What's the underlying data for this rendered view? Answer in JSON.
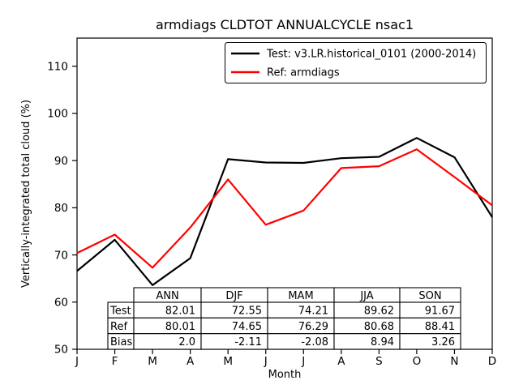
{
  "chart_data": {
    "type": "line",
    "title": "armdiags CLDTOT ANNUALCYCLE nsac1",
    "xlabel": "Month",
    "ylabel": "Vertically-integrated total cloud (%)",
    "categories": [
      "J",
      "F",
      "M",
      "A",
      "M",
      "J",
      "J",
      "A",
      "S",
      "O",
      "N",
      "D"
    ],
    "yticks": [
      50,
      60,
      70,
      80,
      90,
      100,
      110
    ],
    "ylim": [
      50,
      116
    ],
    "grid": false,
    "legend_position": "upper center inside",
    "series": [
      {
        "name": "Test",
        "legend_label": "Test: v3.LR.historical_0101 (2000-2014)",
        "color": "#000000",
        "values": [
          66.6,
          73.2,
          63.6,
          69.3,
          90.3,
          89.6,
          89.5,
          90.5,
          90.8,
          94.8,
          90.7,
          78.0
        ]
      },
      {
        "name": "Ref",
        "legend_label": "Ref: armdiags",
        "color": "#ff0000",
        "values": [
          70.4,
          74.3,
          67.3,
          75.8,
          86.0,
          76.4,
          79.4,
          88.4,
          88.8,
          92.4,
          86.5,
          80.5
        ]
      }
    ]
  },
  "table": {
    "columns": [
      "ANN",
      "DJF",
      "MAM",
      "JJA",
      "SON"
    ],
    "rows": [
      {
        "label": "Test",
        "values": [
          "82.01",
          "72.55",
          "74.21",
          "89.62",
          "91.67"
        ]
      },
      {
        "label": "Ref",
        "values": [
          "80.01",
          "74.65",
          "76.29",
          "80.68",
          "88.41"
        ]
      },
      {
        "label": "Bias",
        "values": [
          "2.0",
          "-2.11",
          "-2.08",
          "8.94",
          "3.26"
        ]
      }
    ]
  },
  "colors": {
    "test_line": "#000000",
    "ref_line": "#ff0000",
    "background": "#ffffff",
    "frame": "#000000"
  }
}
